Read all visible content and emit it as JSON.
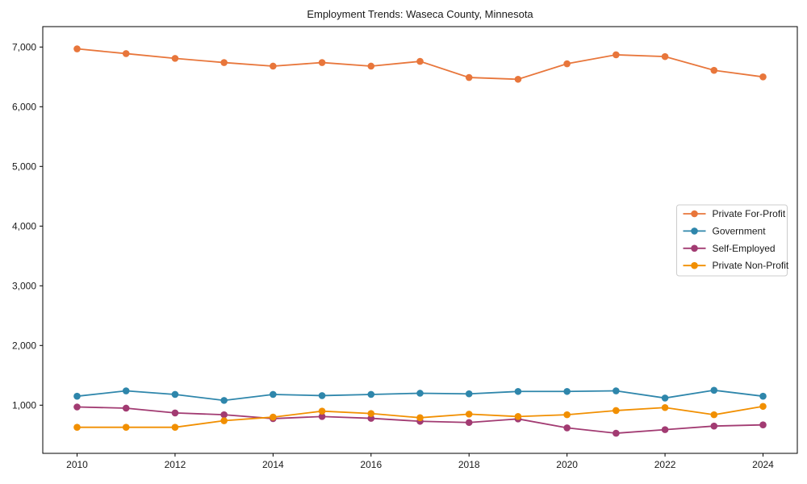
{
  "chart_data": {
    "type": "line",
    "title": "Employment Trends: Waseca County, Minnesota",
    "xlabel": "",
    "ylabel": "",
    "x": [
      2010,
      2011,
      2012,
      2013,
      2014,
      2015,
      2016,
      2017,
      2018,
      2019,
      2020,
      2021,
      2022,
      2023,
      2024
    ],
    "series": [
      {
        "name": "Private For-Profit",
        "color": "#E8763B",
        "values": [
          6970,
          6890,
          6810,
          6740,
          6680,
          6740,
          6680,
          6760,
          6490,
          6460,
          6720,
          6870,
          6840,
          6610,
          6500
        ]
      },
      {
        "name": "Government",
        "color": "#2E86AB",
        "values": [
          1150,
          1240,
          1180,
          1080,
          1180,
          1160,
          1180,
          1200,
          1190,
          1230,
          1230,
          1240,
          1120,
          1250,
          1150
        ]
      },
      {
        "name": "Self-Employed",
        "color": "#A23B72",
        "values": [
          970,
          950,
          870,
          840,
          775,
          810,
          780,
          730,
          710,
          770,
          620,
          530,
          590,
          650,
          670
        ]
      },
      {
        "name": "Private Non-Profit",
        "color": "#F18F01",
        "values": [
          630,
          630,
          630,
          740,
          800,
          900,
          860,
          790,
          850,
          810,
          840,
          910,
          960,
          840,
          980
        ]
      }
    ],
    "xticks": [
      2010,
      2012,
      2014,
      2016,
      2018,
      2020,
      2022,
      2024
    ],
    "yticks": [
      1000,
      2000,
      3000,
      4000,
      5000,
      6000,
      7000
    ],
    "ytick_labels": [
      "1,000",
      "2,000",
      "3,000",
      "4,000",
      "5,000",
      "6,000",
      "7,000"
    ],
    "xlim": [
      2009.3,
      2024.7
    ],
    "ylim": [
      193,
      7342
    ],
    "grid": false,
    "legend_position": "center right",
    "legend_labels": [
      "Private For-Profit",
      "Government",
      "Self-Employed",
      "Private Non-Profit"
    ],
    "axes_color": "#000000",
    "text_color": "#1a1a1a",
    "background_color": "#ffffff"
  }
}
